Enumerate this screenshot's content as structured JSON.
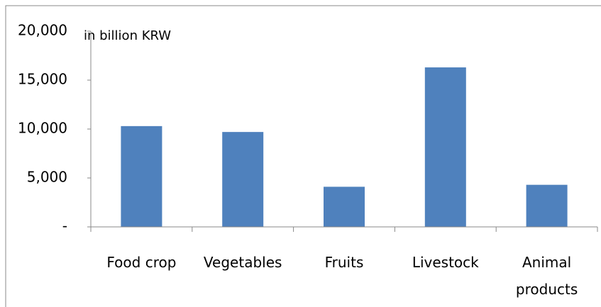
{
  "chart_data": {
    "type": "bar",
    "y_axis_label": "in billion KRW",
    "categories": [
      "Food crop",
      "Vegetables",
      "Fruits",
      "Livestock",
      "Animal products"
    ],
    "values": [
      10300,
      9700,
      4100,
      16300,
      4300
    ],
    "color": "#4f81bd",
    "ylim": [
      0,
      20000
    ],
    "yticks": [
      {
        "value": 0,
        "label": "-"
      },
      {
        "value": 5000,
        "label": "5,000"
      },
      {
        "value": 10000,
        "label": "10,000"
      },
      {
        "value": 15000,
        "label": "15,000"
      },
      {
        "value": 20000,
        "label": "20,000"
      }
    ],
    "grid": false
  }
}
